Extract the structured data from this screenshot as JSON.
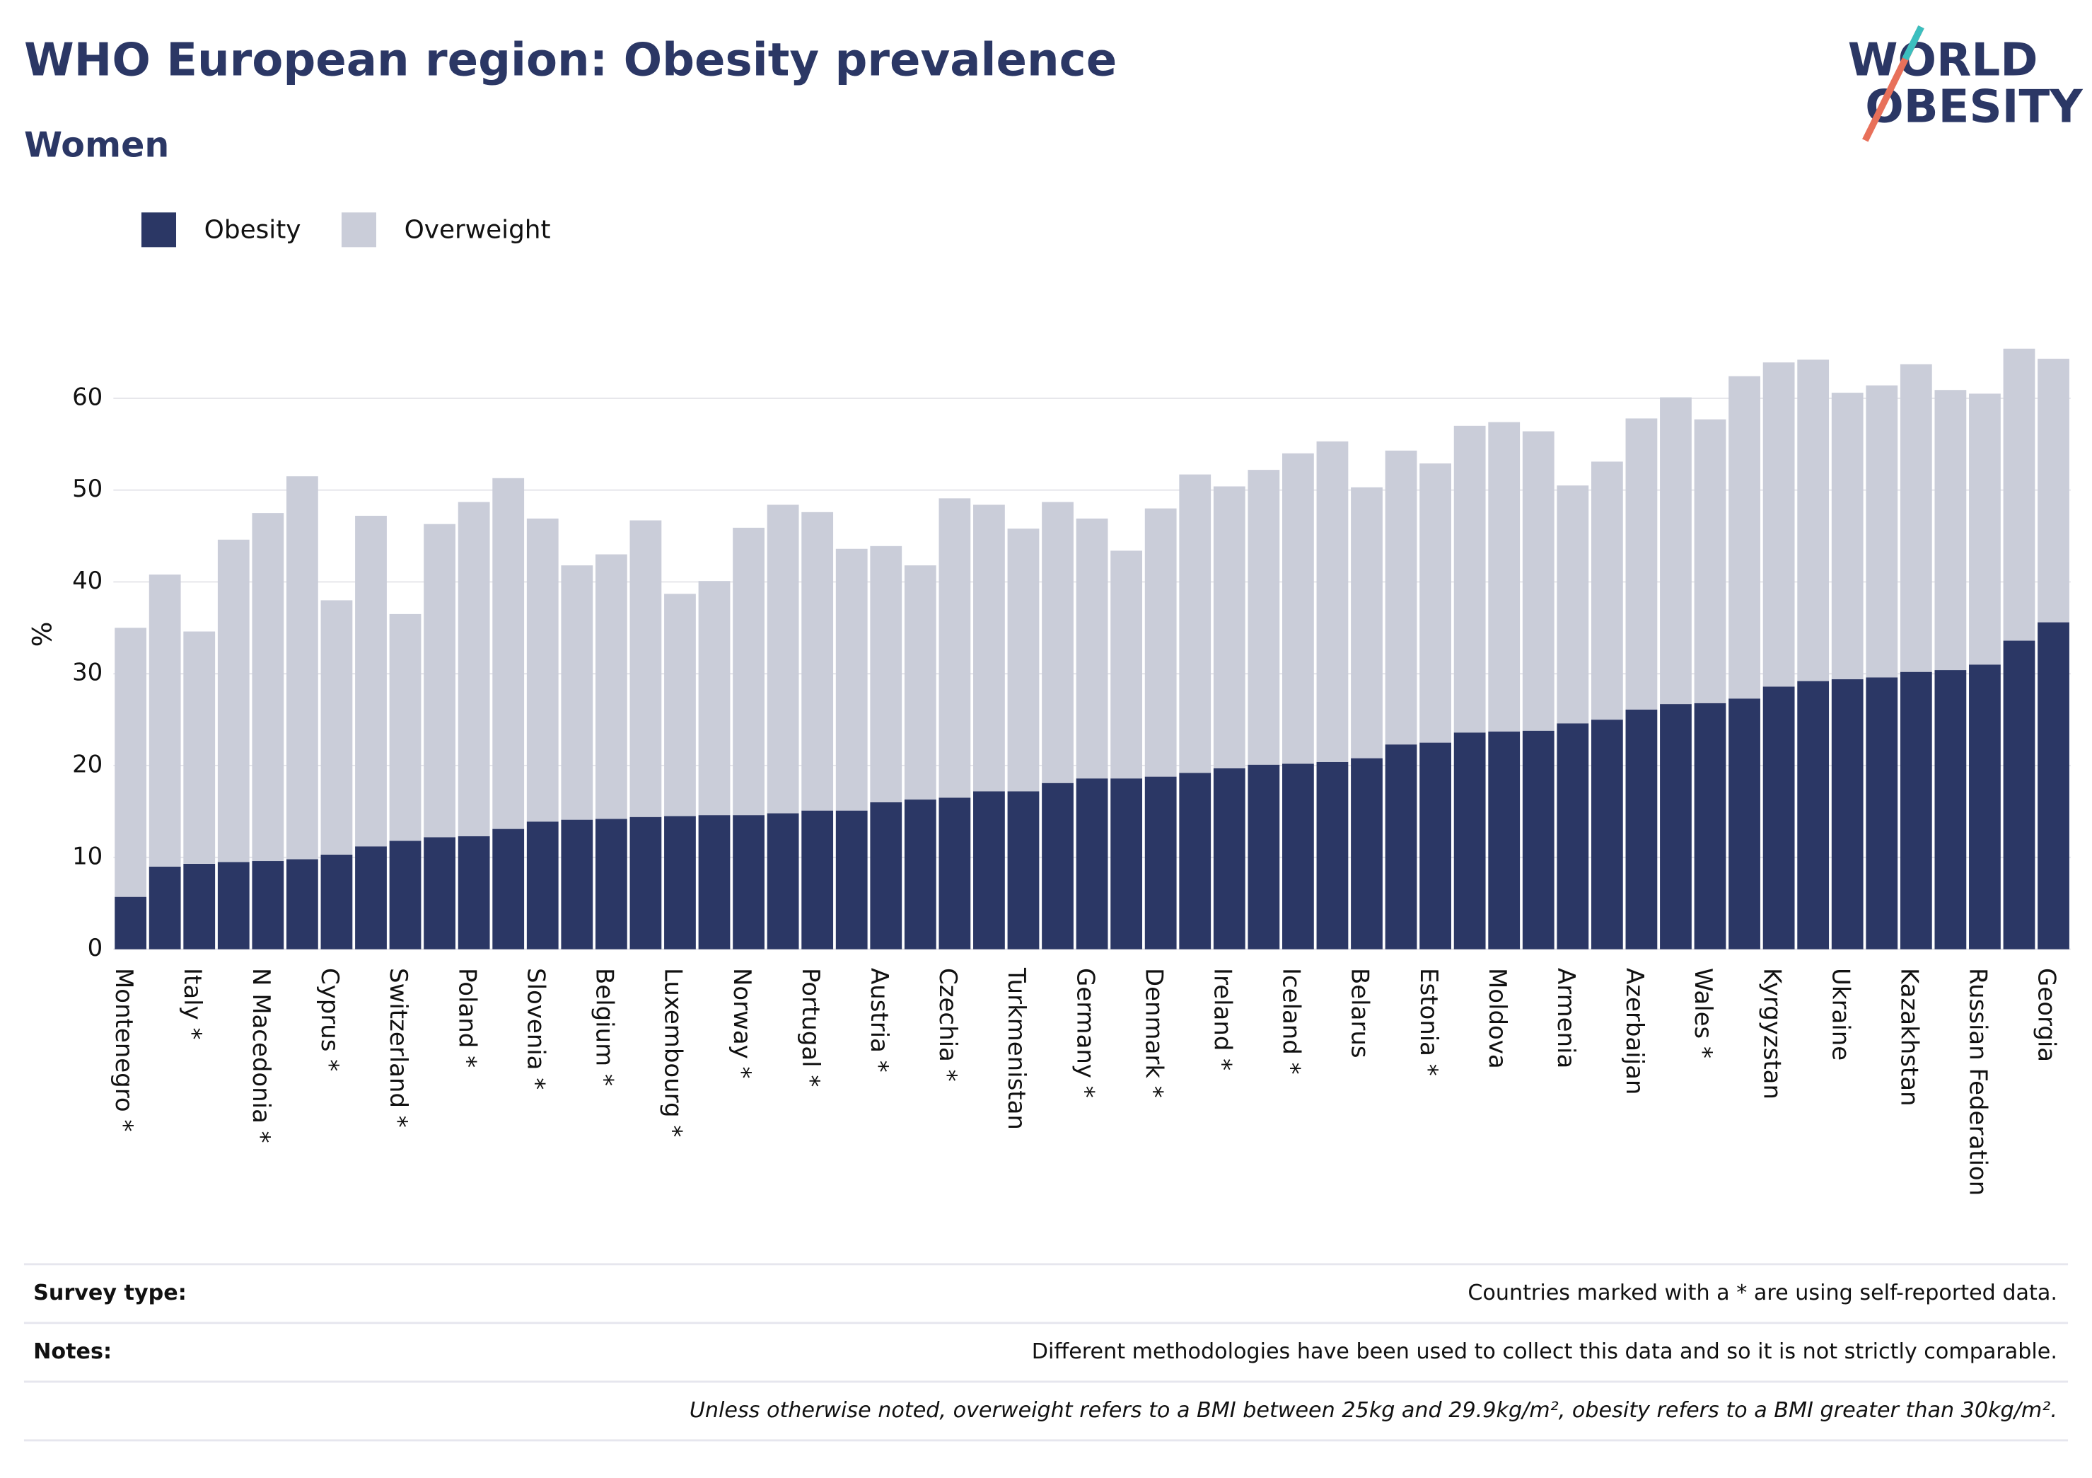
{
  "logo": {
    "line1": "WORLD",
    "line2": "OBESITY"
  },
  "chart_data": {
    "type": "stacked_bar",
    "title": "WHO European region: Obesity prevalence",
    "subtitle": "Women",
    "y_label": "%",
    "categories": [
      "Montenegro *",
      null,
      "Italy *",
      null,
      "N Macedonia *",
      null,
      "Cyprus *",
      null,
      "Switzerland *",
      null,
      "Poland *",
      null,
      "Slovenia *",
      null,
      "Belgium *",
      null,
      "Luxembourg *",
      null,
      "Norway *",
      null,
      "Portugal *",
      null,
      "Austria *",
      null,
      "Czechia *",
      null,
      "Turkmenistan",
      null,
      "Germany *",
      null,
      "Denmark *",
      null,
      "Ireland *",
      null,
      "Iceland *",
      null,
      "Belarus",
      null,
      "Estonia *",
      null,
      "Moldova",
      null,
      "Armenia",
      null,
      "Azerbaijan",
      null,
      "Wales *",
      null,
      "Kyrgyzstan",
      null,
      "Ukraine",
      null,
      "Kazakhstan",
      null,
      "Russian Federation",
      null,
      "Georgia"
    ],
    "series": [
      {
        "name": "Obesity",
        "color": "#2b3765",
        "values": [
          5.7,
          9.0,
          9.3,
          9.5,
          9.6,
          9.8,
          10.3,
          11.2,
          11.8,
          12.2,
          12.3,
          13.1,
          13.9,
          14.1,
          14.2,
          14.4,
          14.5,
          14.6,
          14.6,
          14.8,
          15.1,
          15.1,
          16.0,
          16.3,
          16.5,
          17.2,
          17.2,
          18.1,
          18.6,
          18.6,
          18.8,
          19.2,
          19.7,
          20.1,
          20.2,
          20.4,
          20.8,
          22.3,
          22.5,
          23.6,
          23.7,
          23.8,
          24.6,
          25.0,
          26.1,
          26.7,
          26.8,
          27.3,
          28.6,
          29.2,
          29.4,
          29.6,
          30.2,
          30.4,
          31.0,
          33.6,
          35.6
        ]
      },
      {
        "name": "Overweight",
        "color": "#cacdd9",
        "values": [
          29.3,
          31.8,
          25.3,
          35.1,
          37.9,
          41.7,
          27.7,
          36.0,
          24.7,
          34.1,
          36.4,
          38.2,
          33.0,
          27.7,
          28.8,
          32.3,
          24.2,
          25.5,
          31.3,
          33.6,
          32.5,
          28.5,
          27.9,
          25.5,
          32.6,
          31.2,
          28.6,
          30.6,
          28.3,
          24.8,
          29.2,
          32.5,
          30.7,
          32.1,
          33.8,
          34.9,
          29.5,
          32.0,
          30.4,
          33.4,
          33.7,
          32.6,
          25.9,
          28.1,
          31.7,
          33.4,
          30.9,
          35.1,
          35.3,
          35.0,
          31.2,
          31.8,
          33.5,
          30.5,
          29.5,
          31.8,
          28.7
        ]
      }
    ],
    "ylim": [
      0,
      68
    ],
    "yticks": [
      0,
      10,
      20,
      30,
      40,
      50,
      60
    ],
    "grid": true,
    "legend": "top-left"
  },
  "footer": {
    "rows": [
      {
        "label": "Survey type:",
        "text": "Countries marked with a * are using self-reported data."
      },
      {
        "label": "Notes:",
        "text": "Different methodologies have been used to collect this data and so it is not strictly comparable."
      },
      {
        "label": null,
        "text": "Unless otherwise noted, overweight refers to a BMI between 25kg and 29.9kg/m², obesity refers to a BMI greater than 30kg/m²."
      }
    ]
  }
}
